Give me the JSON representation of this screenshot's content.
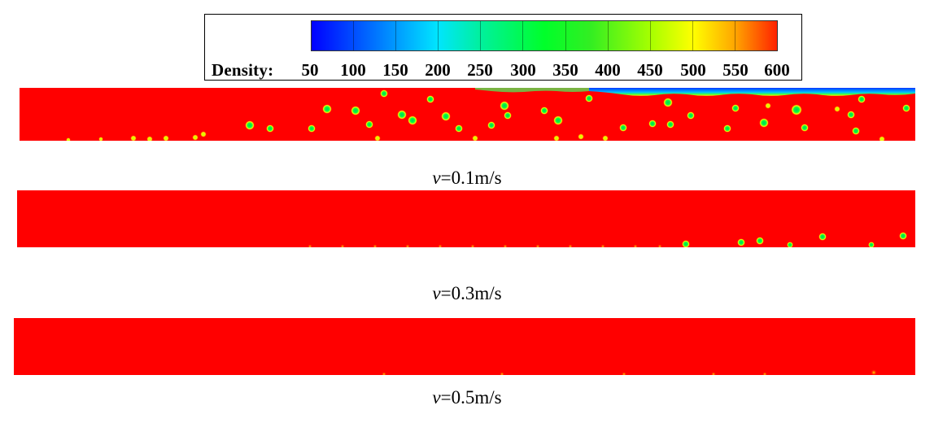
{
  "legend": {
    "title": "Density:",
    "ticks": [
      "50",
      "100",
      "150",
      "200",
      "250",
      "300",
      "350",
      "400",
      "450",
      "500",
      "550",
      "600"
    ],
    "colors": [
      "#0000ff",
      "#0066ff",
      "#00e5ff",
      "#00f0a0",
      "#00ff2a",
      "#33ee22",
      "#a8ff00",
      "#ffff00",
      "#ffa500",
      "#ff2200"
    ]
  },
  "panels": [
    {
      "variable": "v",
      "value_text": "=0.1m/s"
    },
    {
      "variable": "v",
      "value_text": "=0.3m/s"
    },
    {
      "variable": "v",
      "value_text": "=0.5m/s"
    }
  ]
}
